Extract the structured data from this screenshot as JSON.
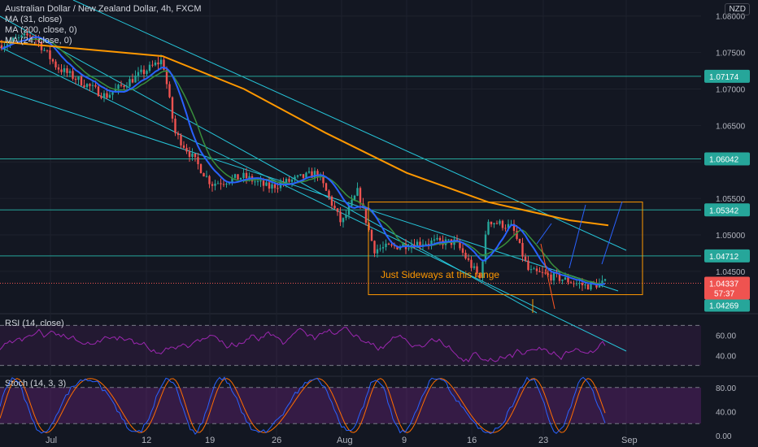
{
  "header": {
    "title": "Australian Dollar / New Zealand Dollar, 4h, FXCM",
    "currency_button": "NZD"
  },
  "indicators": {
    "ma1": "MA (31, close)",
    "ma2": "MA (200, close, 0)",
    "ma3": "MA (24, close, 0)",
    "rsi_label": "RSI (14, close)",
    "stoch_label": "Stoch (14, 3, 3)"
  },
  "annotation": {
    "text": "Just Sideways at this range"
  },
  "price_labels": {
    "current": "1.04337",
    "countdown": "57:37",
    "bid": "1.04269"
  },
  "colors": {
    "background": "#131722",
    "bull": "#26a69a",
    "bear": "#ef5350",
    "ma200": "#ff9800",
    "ma31": "#2962ff",
    "ma24": "#388e3c",
    "levels": "#26a69a",
    "box": "#ff9800",
    "rsi": "#9c27b0",
    "stoch_k": "#2962ff",
    "stoch_d": "#ff6d00"
  },
  "chart_data": {
    "type": "candlestick",
    "price_axis": {
      "ticks": [
        "1.08000",
        "1.07500",
        "1.07000",
        "1.06500",
        "1.06000",
        "1.05500",
        "1.05000",
        "1.04500"
      ],
      "ylim": [
        1.0393,
        1.0822
      ]
    },
    "time_axis": {
      "ticks": [
        "Jul",
        "12",
        "19",
        "26",
        "Aug",
        "9",
        "16",
        "23",
        "Sep"
      ]
    },
    "horizontal_levels": [
      "1.07174",
      "1.06042",
      "1.05342",
      "1.04712"
    ],
    "range_box": {
      "low": 1.0418,
      "high": 1.0545
    },
    "rsi": {
      "ticks": [
        "60.00",
        "40.00"
      ],
      "ylim": [
        20,
        80
      ],
      "bands": [
        70,
        30
      ]
    },
    "stoch": {
      "ticks": [
        "80.00",
        "40.00",
        "0.00"
      ],
      "ylim": [
        0,
        100
      ],
      "bands": [
        80,
        20
      ]
    }
  }
}
